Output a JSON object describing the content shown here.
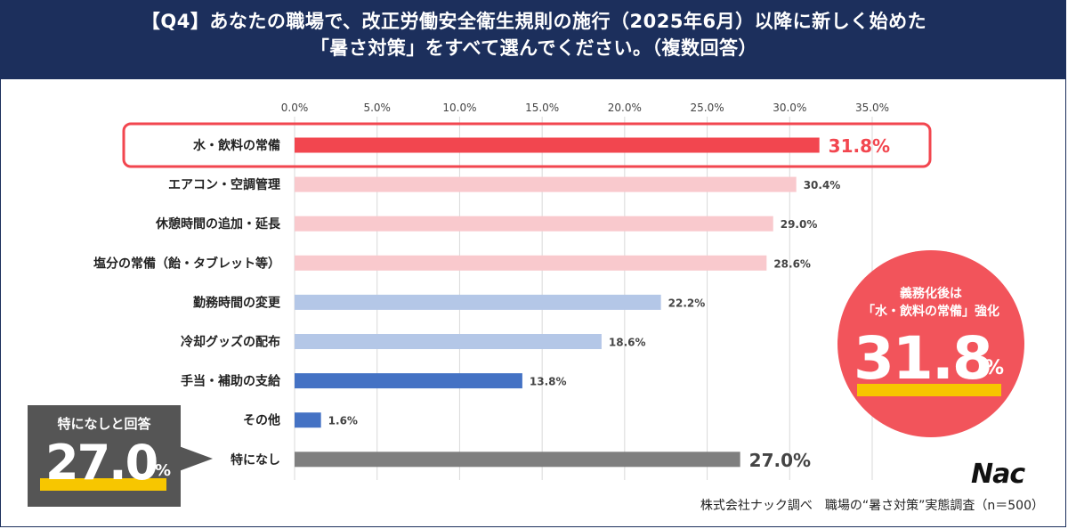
{
  "header": {
    "line1": "【Q4】あなたの職場で、改正労働安全衛生規則の施行（2025年6月）以降に新しく始めた",
    "line2": "「暑さ対策」をすべて選んでください。（複数回答）"
  },
  "chart_data": {
    "type": "bar",
    "orientation": "horizontal",
    "categories": [
      "水・飲料の常備",
      "エアコン・空調管理",
      "休憩時間の追加・延長",
      "塩分の常備（飴・タブレット等）",
      "勤務時間の変更",
      "冷却グッズの配布",
      "手当・補助の支給",
      "その他",
      "特になし"
    ],
    "values": [
      31.8,
      30.4,
      29.0,
      28.6,
      22.2,
      18.6,
      13.8,
      1.6,
      27.0
    ],
    "value_labels": [
      "31.8%",
      "30.4%",
      "29.0%",
      "28.6%",
      "22.2%",
      "18.6%",
      "13.8%",
      "1.6%",
      "27.0%"
    ],
    "bar_colors": [
      "#f2464f",
      "#f9c9cd",
      "#f9c9cd",
      "#f9c9cd",
      "#b4c7e7",
      "#b4c7e7",
      "#4472c4",
      "#4472c4",
      "#7f7f7f"
    ],
    "label_colors": [
      "#f2464f",
      "#444444",
      "#444444",
      "#444444",
      "#444444",
      "#444444",
      "#444444",
      "#444444",
      "#444444"
    ],
    "highlight_index": 0,
    "xlim": [
      0,
      35
    ],
    "xticks": [
      0,
      5,
      10,
      15,
      20,
      25,
      30,
      35
    ],
    "xtick_labels": [
      "0.0%",
      "5.0%",
      "10.0%",
      "15.0%",
      "20.0%",
      "25.0%",
      "30.0%",
      "35.0%"
    ],
    "grid": true
  },
  "circle_callout": {
    "line1": "義務化後は",
    "line2": "「水・飲料の常備」強化",
    "value": "31.8",
    "unit": "%"
  },
  "box_callout": {
    "label": "特になしと回答",
    "value": "27.0",
    "unit": "%"
  },
  "logo": {
    "text": "Nac"
  },
  "source": "株式会社ナック調べ　職場の“暑さ対策”実態調査（n＝500）",
  "colors": {
    "header_bg": "#1c2f5c",
    "accent_red": "#f2464f",
    "highlight_yellow": "#f7c600"
  }
}
